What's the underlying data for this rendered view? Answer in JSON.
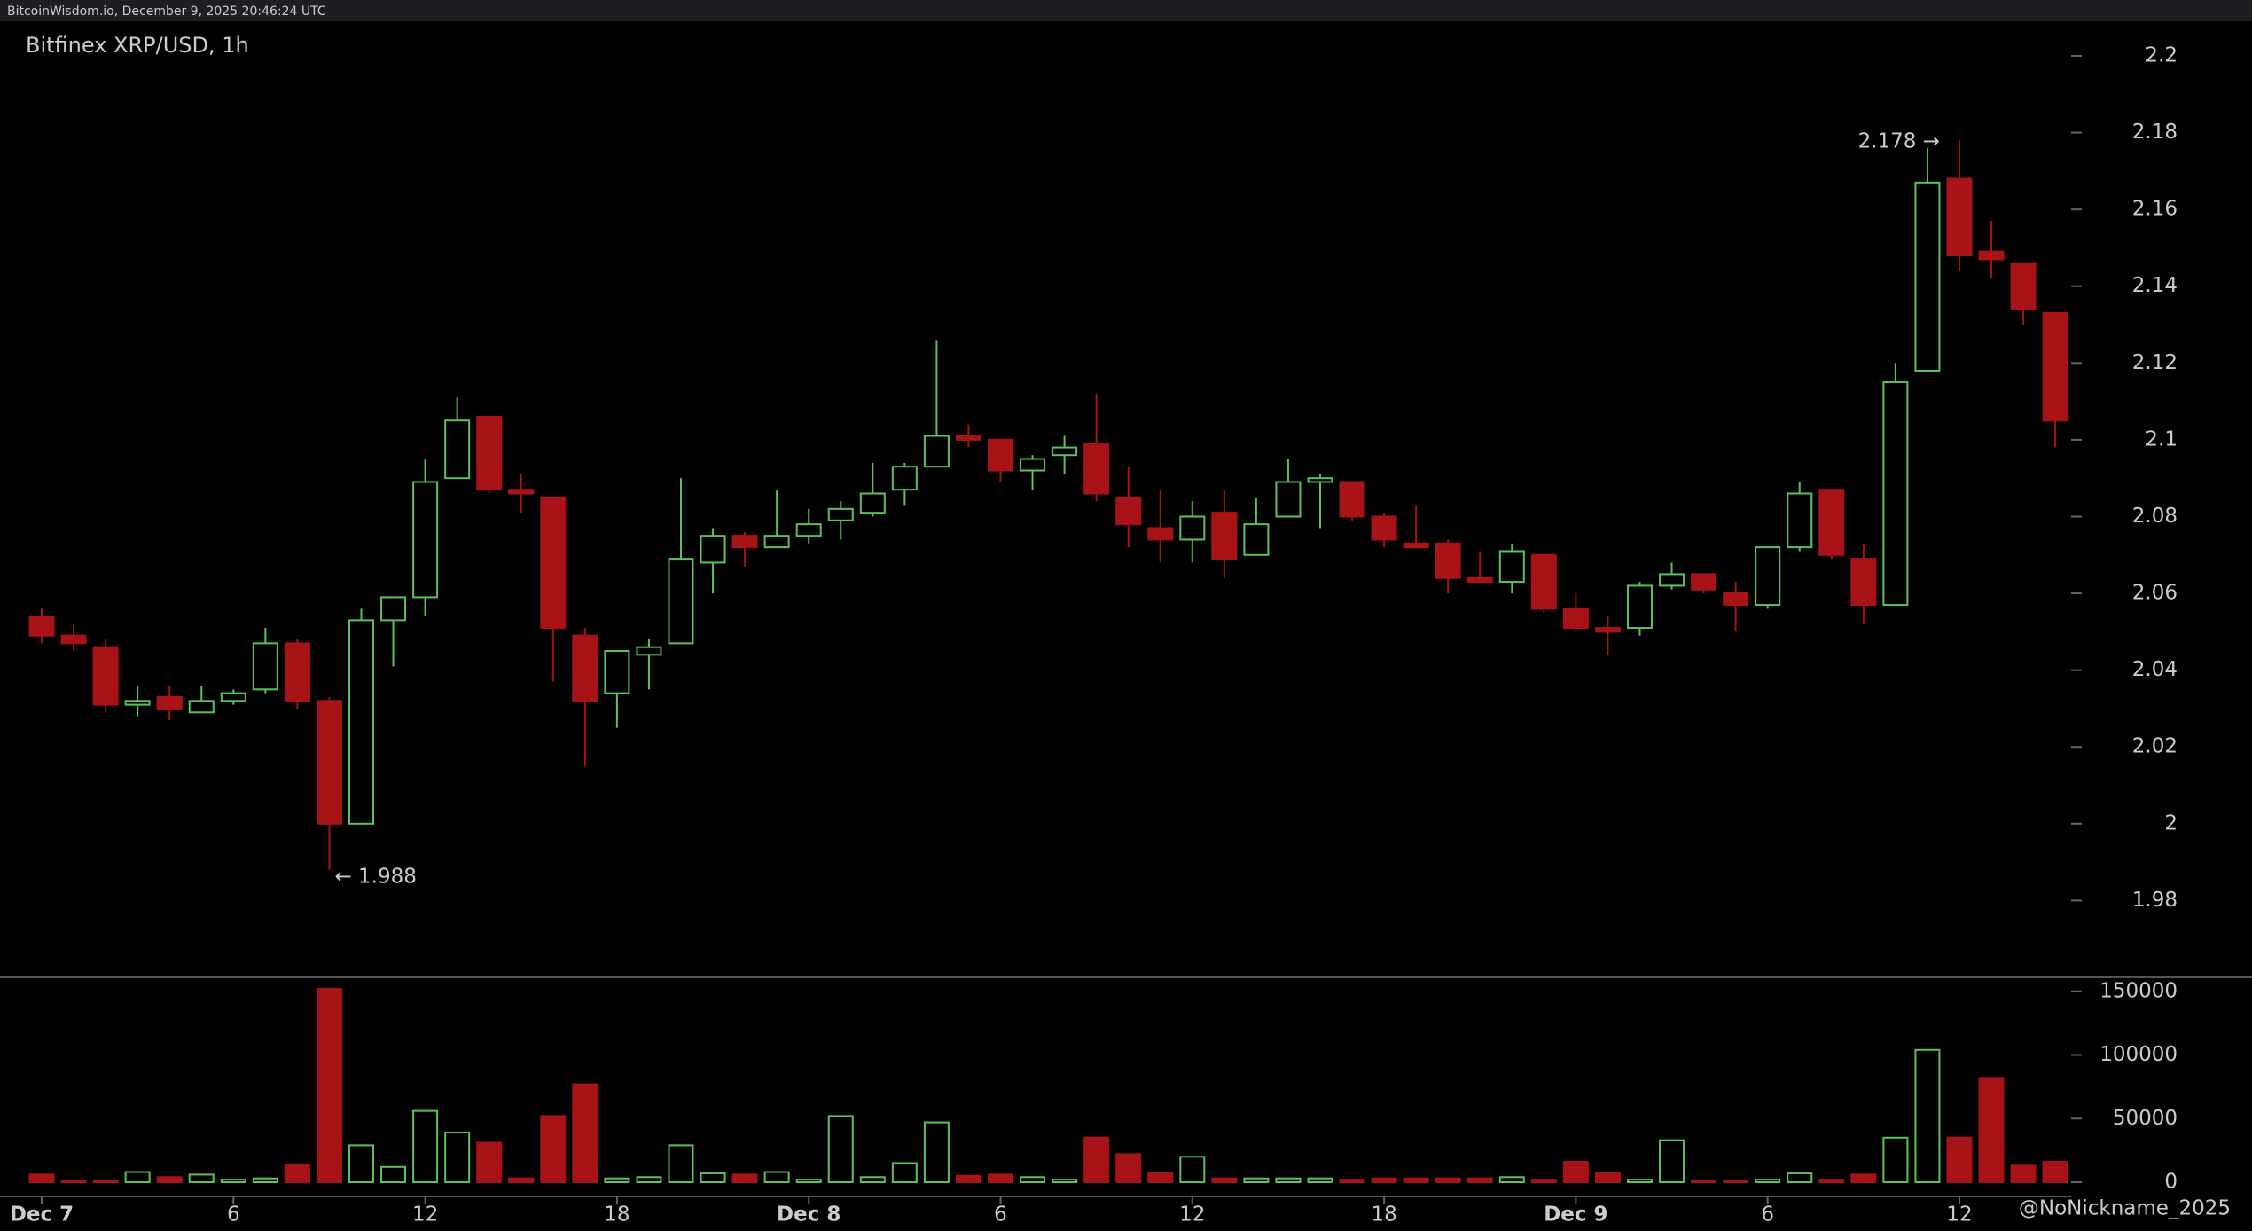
{
  "header": "BitcoinWisdom.io, December 9, 2025 20:46:24 UTC",
  "watermark": "@NoNickname_2025",
  "chart_data": {
    "type": "candlestick",
    "title": "Bitfinex XRP/USD, 1h",
    "categories": [
      "Dec 7",
      null,
      null,
      null,
      null,
      null,
      "6",
      null,
      null,
      null,
      null,
      null,
      "12",
      null,
      null,
      null,
      null,
      null,
      "18",
      null,
      null,
      null,
      null,
      null,
      "Dec 8",
      null,
      null,
      null,
      null,
      null,
      "6",
      null,
      null,
      null,
      null,
      null,
      "12",
      null,
      null,
      null,
      null,
      null,
      "18",
      null,
      null,
      null,
      null,
      null,
      "Dec 9",
      null,
      null,
      null,
      null,
      null,
      "6",
      null,
      null,
      null,
      null,
      null,
      "12",
      null,
      null,
      null
    ],
    "open": [
      2.054,
      2.049,
      2.046,
      2.031,
      2.033,
      2.029,
      2.032,
      2.035,
      2.047,
      2.032,
      2.0,
      2.053,
      2.059,
      2.09,
      2.106,
      2.087,
      2.085,
      2.049,
      2.034,
      2.044,
      2.047,
      2.068,
      2.075,
      2.072,
      2.075,
      2.079,
      2.081,
      2.087,
      2.093,
      2.101,
      2.1,
      2.092,
      2.096,
      2.099,
      2.085,
      2.077,
      2.074,
      2.081,
      2.07,
      2.08,
      2.089,
      2.089,
      2.08,
      2.073,
      2.073,
      2.064,
      2.063,
      2.07,
      2.056,
      2.051,
      2.051,
      2.062,
      2.065,
      2.06,
      2.057,
      2.072,
      2.087,
      2.069,
      2.057,
      2.118,
      2.168,
      2.149,
      2.146,
      2.133
    ],
    "high": [
      2.056,
      2.052,
      2.048,
      2.036,
      2.036,
      2.036,
      2.035,
      2.051,
      2.048,
      2.033,
      2.056,
      2.059,
      2.095,
      2.111,
      2.106,
      2.091,
      2.085,
      2.051,
      2.045,
      2.048,
      2.09,
      2.077,
      2.076,
      2.087,
      2.082,
      2.084,
      2.094,
      2.094,
      2.126,
      2.104,
      2.1,
      2.096,
      2.101,
      2.112,
      2.093,
      2.087,
      2.084,
      2.087,
      2.085,
      2.095,
      2.091,
      2.089,
      2.081,
      2.083,
      2.074,
      2.071,
      2.073,
      2.07,
      2.06,
      2.054,
      2.063,
      2.068,
      2.065,
      2.063,
      2.072,
      2.089,
      2.087,
      2.073,
      2.12,
      2.176,
      2.178,
      2.157,
      2.146,
      2.133
    ],
    "low": [
      2.047,
      2.045,
      2.029,
      2.028,
      2.027,
      2.029,
      2.031,
      2.034,
      2.03,
      1.988,
      2.0,
      2.041,
      2.054,
      2.09,
      2.086,
      2.081,
      2.037,
      2.015,
      2.025,
      2.035,
      2.047,
      2.06,
      2.067,
      2.072,
      2.073,
      2.074,
      2.08,
      2.083,
      2.093,
      2.098,
      2.089,
      2.087,
      2.091,
      2.084,
      2.072,
      2.068,
      2.068,
      2.064,
      2.07,
      2.08,
      2.077,
      2.079,
      2.072,
      2.072,
      2.06,
      2.063,
      2.06,
      2.055,
      2.05,
      2.044,
      2.049,
      2.061,
      2.06,
      2.05,
      2.056,
      2.071,
      2.069,
      2.052,
      2.057,
      2.118,
      2.144,
      2.142,
      2.13,
      2.098
    ],
    "close": [
      2.049,
      2.047,
      2.031,
      2.032,
      2.03,
      2.032,
      2.034,
      2.047,
      2.032,
      2.0,
      2.053,
      2.059,
      2.089,
      2.105,
      2.087,
      2.086,
      2.051,
      2.032,
      2.045,
      2.046,
      2.069,
      2.075,
      2.072,
      2.075,
      2.078,
      2.082,
      2.086,
      2.093,
      2.101,
      2.1,
      2.092,
      2.095,
      2.098,
      2.086,
      2.078,
      2.074,
      2.08,
      2.069,
      2.078,
      2.089,
      2.09,
      2.08,
      2.074,
      2.072,
      2.064,
      2.063,
      2.071,
      2.056,
      2.051,
      2.05,
      2.062,
      2.065,
      2.061,
      2.057,
      2.072,
      2.086,
      2.07,
      2.057,
      2.115,
      2.167,
      2.148,
      2.147,
      2.134,
      2.105
    ],
    "volume": [
      6000,
      1000,
      1000,
      8000,
      4000,
      6000,
      2000,
      3000,
      14000,
      152000,
      29000,
      12000,
      56000,
      39000,
      31000,
      3000,
      52000,
      77000,
      3000,
      4000,
      29000,
      7000,
      6000,
      8000,
      2000,
      52000,
      4000,
      15000,
      47000,
      5000,
      6000,
      4000,
      2000,
      35000,
      22000,
      7000,
      20000,
      3000,
      3000,
      3000,
      3000,
      2000,
      3000,
      3000,
      3000,
      3000,
      4000,
      2000,
      16000,
      7000,
      2000,
      33000,
      1000,
      1000,
      2000,
      7000,
      2000,
      6000,
      35000,
      104000,
      35000,
      82000,
      13000,
      16000
    ],
    "up_color": "#5cc15c",
    "down_color": "#a81317",
    "ylim": [
      1.96,
      2.209
    ],
    "yticks": [
      1.98,
      2,
      2.02,
      2.04,
      2.06,
      2.08,
      2.1,
      2.12,
      2.14,
      2.16,
      2.18,
      2.2
    ],
    "volume_ylim": [
      0,
      161000
    ],
    "volume_yticks": [
      0,
      50000,
      100000,
      150000
    ],
    "annotations": [
      {
        "label": "2.178 →",
        "value": 2.178
      },
      {
        "label": "← 1.988",
        "value": 1.988
      }
    ]
  }
}
